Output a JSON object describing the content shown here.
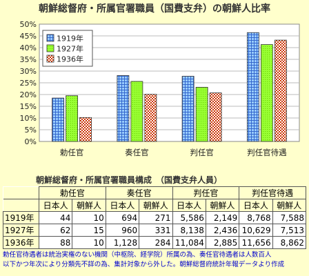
{
  "title": "朝鮮総督府・所属官署職員（国費支弁）の朝鮮人比率",
  "chart_data": {
    "type": "bar",
    "categories": [
      "勅任官",
      "奏任官",
      "判任官",
      "判任官待遇"
    ],
    "series": [
      {
        "name": "1919年",
        "values": [
          18.5,
          28.1,
          27.8,
          46.4
        ],
        "color": "#99ccff"
      },
      {
        "name": "1927年",
        "values": [
          19.5,
          25.6,
          23.1,
          41.3
        ],
        "color": "#99ff33"
      },
      {
        "name": "1936年",
        "values": [
          10.2,
          20.1,
          20.7,
          43.2
        ],
        "color": "#cc6633"
      }
    ],
    "ylim": [
      0,
      50
    ],
    "yticks": [
      "0%",
      "5%",
      "10%",
      "15%",
      "20%",
      "25%",
      "30%",
      "35%",
      "40%",
      "45%",
      "50%"
    ],
    "grid": true,
    "legend": "top-left"
  },
  "table": {
    "title": "朝鮮総督府・所属官署職員構成　（国費支弁人員）",
    "groups": [
      "勅任官",
      "奏任官",
      "判任官",
      "判任官待遇"
    ],
    "subheaders": [
      "日本人",
      "朝鮮人"
    ],
    "rows": [
      {
        "year": "1919年",
        "cells": [
          "44",
          "10",
          "694",
          "271",
          "5,586",
          "2,149",
          "8,768",
          "7,588"
        ]
      },
      {
        "year": "1927年",
        "cells": [
          "62",
          "15",
          "960",
          "331",
          "8,138",
          "2,436",
          "10,629",
          "7,513"
        ]
      },
      {
        "year": "1936年",
        "cells": [
          "88",
          "10",
          "1,128",
          "284",
          "11,084",
          "2,885",
          "11,656",
          "8,862"
        ]
      }
    ]
  },
  "note": {
    "line1": "勅任官待遇者は統治実権のない機関（中枢院、経学院）所属の為、奏任官待遇者は人数百人",
    "line2": "以下かつ年次により分類先不詳の為、集計対象から外した。朝鮮総督府統計年報データより作成"
  }
}
